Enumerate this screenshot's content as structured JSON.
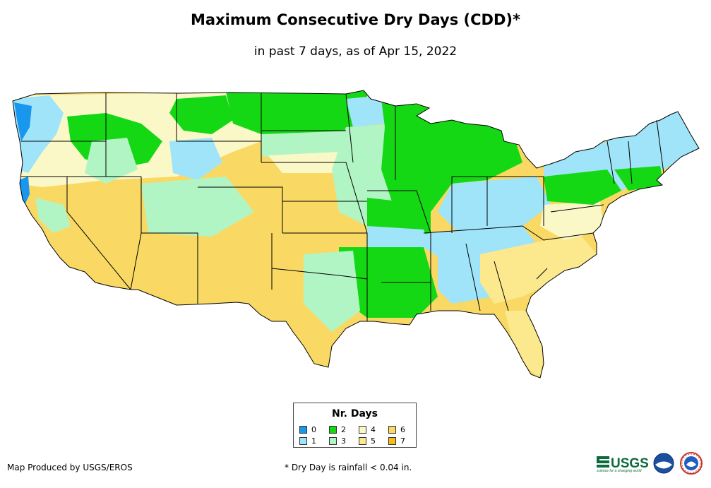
{
  "title": "Maximum Consecutive Dry Days (CDD)*",
  "subtitle": "in past 7 days, as of Apr 15, 2022",
  "legend": {
    "title": "Nr. Days",
    "items": [
      {
        "label": "0",
        "color": "#1996ee"
      },
      {
        "label": "1",
        "color": "#a0e4fa"
      },
      {
        "label": "2",
        "color": "#15d815"
      },
      {
        "label": "3",
        "color": "#b2f5c4"
      },
      {
        "label": "4",
        "color": "#fbf8c8"
      },
      {
        "label": "5",
        "color": "#fce98e"
      },
      {
        "label": "6",
        "color": "#f9d964"
      },
      {
        "label": "7",
        "color": "#f6bd13"
      }
    ]
  },
  "credit": "Map Produced by USGS/EROS",
  "footnote": "* Dry Day is rainfall < 0.04 in.",
  "logos": {
    "usgs": "USGS",
    "usgs_tagline": "science for a changing world"
  }
}
